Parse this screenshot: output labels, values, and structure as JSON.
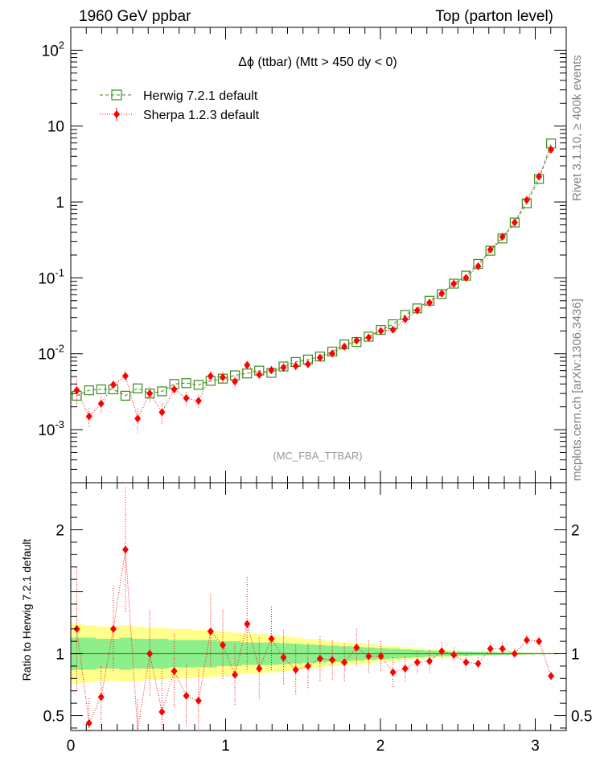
{
  "header": {
    "left": "1960 GeV ppbar",
    "right": "Top (parton level)"
  },
  "side_labels": {
    "rivet": "Rivet 3.1.10, ≥ 400k events",
    "source": "mcplots.cern.ch [arXiv:1306.3436]"
  },
  "chart_data": [
    {
      "type": "scatter",
      "panel": "main",
      "title": "Δϕ (ttbar) (Mtt > 450 dy < 0)",
      "watermark": "(MC_FBA_TTBAR)",
      "xlim": [
        0,
        3.2
      ],
      "ylim": [
        0.0002,
        200
      ],
      "yscale": "log",
      "yticks": [
        "10^-3",
        "10^-2",
        "10^-1",
        "1",
        "10",
        "10^2"
      ],
      "legend_position": "top-left",
      "x": [
        0.039,
        0.118,
        0.196,
        0.275,
        0.353,
        0.432,
        0.51,
        0.589,
        0.668,
        0.746,
        0.825,
        0.903,
        0.982,
        1.06,
        1.139,
        1.217,
        1.296,
        1.374,
        1.453,
        1.532,
        1.61,
        1.689,
        1.767,
        1.846,
        1.924,
        2.003,
        2.081,
        2.16,
        2.238,
        2.317,
        2.396,
        2.474,
        2.553,
        2.631,
        2.71,
        2.788,
        2.867,
        2.945,
        3.024,
        3.102
      ],
      "series": [
        {
          "name": "Herwig 7.2.1 default",
          "color": "#3c8c1e",
          "marker": "open-square",
          "line": "dashed",
          "values": [
            0.0028,
            0.0033,
            0.0034,
            0.0034,
            0.0028,
            0.0035,
            0.003,
            0.0032,
            0.004,
            0.0041,
            0.0039,
            0.0044,
            0.0047,
            0.0052,
            0.0055,
            0.006,
            0.0056,
            0.0068,
            0.0078,
            0.0084,
            0.0092,
            0.0107,
            0.0133,
            0.0143,
            0.0168,
            0.0206,
            0.0245,
            0.0325,
            0.0396,
            0.05,
            0.061,
            0.084,
            0.107,
            0.153,
            0.228,
            0.331,
            0.536,
            0.96,
            2.01,
            5.9
          ]
        },
        {
          "name": "Sherpa 1.2.3 default",
          "color": "#ff0000",
          "marker": "diamond",
          "line": "dotted",
          "values": [
            0.0033,
            0.0015,
            0.0022,
            0.0039,
            0.0051,
            0.0014,
            0.003,
            0.0017,
            0.0034,
            0.0026,
            0.0024,
            0.0051,
            0.0049,
            0.0043,
            0.0071,
            0.0053,
            0.0061,
            0.0066,
            0.0069,
            0.0073,
            0.0089,
            0.0101,
            0.0124,
            0.0149,
            0.0164,
            0.02,
            0.0207,
            0.0285,
            0.0372,
            0.0471,
            0.0622,
            0.0839,
            0.1,
            0.142,
            0.236,
            0.347,
            0.536,
            1.06,
            2.16,
            4.9
          ],
          "errors": [
            0.0013,
            0.0004,
            0.0005,
            0.0005,
            0.0009,
            0.0005,
            0.0007,
            0.0005,
            0.0005,
            0.0005,
            0.0005,
            0.0008,
            0.0008,
            0.0007,
            0.0009,
            0.0007,
            0.0008,
            0.0008,
            0.0008,
            0.0008,
            0.0009,
            0.001,
            0.0011,
            0.0012,
            0.0013,
            0.0015,
            0.0016,
            0.002,
            0.0025,
            0.003,
            0.004,
            0.005,
            0.006,
            0.008,
            0.012,
            0.017,
            0.025,
            0.045,
            0.09,
            0.2
          ]
        }
      ]
    },
    {
      "type": "scatter",
      "panel": "ratio",
      "ylabel": "Ratio to Herwig 7.2.1 default",
      "xlim": [
        0,
        3.2
      ],
      "ylim": [
        0.38,
        2.38
      ],
      "xticks": [
        0,
        1,
        2,
        3
      ],
      "yticks": [
        0.5,
        1,
        2
      ],
      "band_inner_halfwidth": [
        0.13,
        0.13,
        0.12,
        0.12,
        0.13,
        0.12,
        0.12,
        0.12,
        0.11,
        0.11,
        0.11,
        0.11,
        0.1,
        0.1,
        0.09,
        0.09,
        0.09,
        0.085,
        0.08,
        0.075,
        0.07,
        0.065,
        0.06,
        0.055,
        0.05,
        0.045,
        0.04,
        0.035,
        0.03,
        0.025,
        0.02,
        0.018,
        0.016,
        0.014,
        0.012,
        0.01,
        0.008,
        0.006,
        0.004,
        0.002
      ],
      "band_outer_halfwidth": [
        0.24,
        0.23,
        0.22,
        0.22,
        0.23,
        0.22,
        0.21,
        0.21,
        0.2,
        0.2,
        0.19,
        0.19,
        0.18,
        0.17,
        0.16,
        0.16,
        0.15,
        0.14,
        0.13,
        0.12,
        0.11,
        0.1,
        0.09,
        0.085,
        0.075,
        0.065,
        0.06,
        0.05,
        0.045,
        0.035,
        0.03,
        0.025,
        0.02,
        0.018,
        0.015,
        0.012,
        0.01,
        0.008,
        0.005,
        0.003
      ],
      "values": [
        1.2,
        0.44,
        0.65,
        1.2,
        1.84,
        0.33,
        1.0,
        0.53,
        0.86,
        0.66,
        0.62,
        1.18,
        1.07,
        0.83,
        1.24,
        0.88,
        1.12,
        0.97,
        0.87,
        0.9,
        0.96,
        0.95,
        0.93,
        1.05,
        0.98,
        0.98,
        0.85,
        0.88,
        0.93,
        0.94,
        1.02,
        0.99,
        0.93,
        0.92,
        1.04,
        1.04,
        1.0,
        1.11,
        1.1,
        0.82
      ],
      "errors": [
        0.5,
        0.2,
        0.25,
        0.35,
        0.5,
        0.3,
        0.35,
        0.35,
        0.3,
        0.25,
        0.25,
        0.3,
        0.28,
        0.25,
        0.38,
        0.25,
        0.26,
        0.22,
        0.2,
        0.18,
        0.18,
        0.16,
        0.15,
        0.15,
        0.13,
        0.12,
        0.12,
        0.1,
        0.09,
        0.09,
        0.07,
        0.06,
        0.06,
        0.05,
        0.05,
        0.05,
        0.04,
        0.04,
        0.03,
        0.03
      ]
    }
  ]
}
